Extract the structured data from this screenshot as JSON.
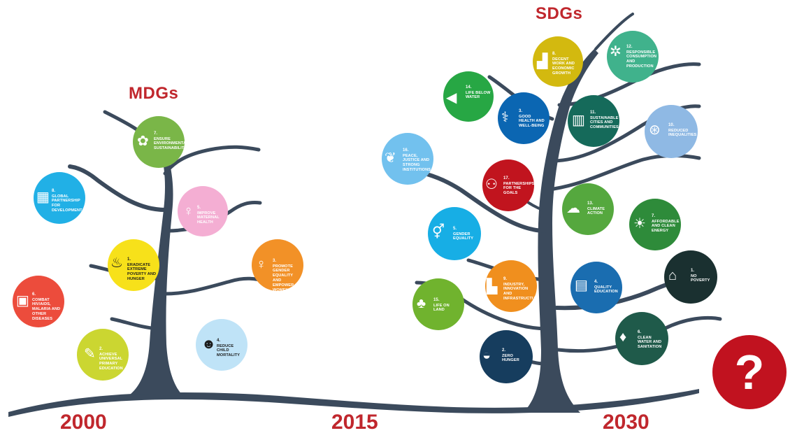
{
  "titles": {
    "mdgs": "MDGs",
    "sdgs": "SDGs"
  },
  "years": [
    "2000",
    "2015",
    "2030"
  ],
  "question_mark": "?",
  "colors": {
    "trunk": "#3b4a5c",
    "accent_red": "#c0272d"
  },
  "mdg_goals": [
    {
      "number": "7.",
      "label": "ENSURE ENVIRONMENTAL SUSTAINABILITY",
      "color": "#7ab648",
      "icon": "plant-icon"
    },
    {
      "number": "8.",
      "label": "GLOBAL PARTNERSHIP FOR DEVELOPMENT",
      "color": "#21b0e6",
      "icon": "handshake-icon"
    },
    {
      "number": "5.",
      "label": "IMPROVE MATERNAL HEALTH",
      "color": "#f4aed3",
      "icon": "pregnant-woman-icon"
    },
    {
      "number": "1.",
      "label": "ERADICATE EXTREME POVERTY AND HUNGER",
      "color": "#f7e11a",
      "icon": "bowl-icon"
    },
    {
      "number": "3.",
      "label": "PROMOTE GENDER EQUALITY AND EMPOWER WOMEN",
      "color": "#f29127",
      "icon": "female-symbol-icon"
    },
    {
      "number": "6.",
      "label": "COMBAT HIV/AIDS, MALARIA AND OTHER DISEASES",
      "color": "#ec4c3c",
      "icon": "medicine-icon"
    },
    {
      "number": "2.",
      "label": "ACHIEVE UNIVERSAL PRIMARY EDUCATION",
      "color": "#cbd631",
      "icon": "pencil-icon"
    },
    {
      "number": "4.",
      "label": "REDUCE CHILD MORTALITY",
      "color": "#bfe3f7",
      "icon": "teddy-bear-icon"
    }
  ],
  "sdg_goals": [
    {
      "number": "8.",
      "label": "DECENT WORK AND ECONOMIC GROWTH",
      "color": "#d3b90f",
      "icon": "growth-chart-icon"
    },
    {
      "number": "12.",
      "label": "RESPONSIBLE CONSUMPTION AND PRODUCTION",
      "color": "#40b28c",
      "icon": "infinity-icon"
    },
    {
      "number": "14.",
      "label": "LIFE BELOW WATER",
      "color": "#27a744",
      "icon": "fish-icon"
    },
    {
      "number": "3.",
      "label": "GOOD HEALTH AND WELL-BEING",
      "color": "#0b66b2",
      "icon": "stethoscope-icon"
    },
    {
      "number": "11.",
      "label": "SUSTAINABLE CITIES AND COMMUNITIES",
      "color": "#156a5a",
      "icon": "city-icon"
    },
    {
      "number": "10.",
      "label": "REDUCED INEQUALITIES",
      "color": "#8fb9e4",
      "icon": "arrows-icon"
    },
    {
      "number": "16.",
      "label": "PEACE, JUSTICE AND STRONG INSTITUTIONS",
      "color": "#72c1ee",
      "icon": "dove-icon"
    },
    {
      "number": "17.",
      "label": "PARTNERSHIPS FOR THE GOALS",
      "color": "#c1141e",
      "icon": "partnership-icon"
    },
    {
      "number": "13.",
      "label": "CLIMATE ACTION",
      "color": "#55a83e",
      "icon": "climate-icon"
    },
    {
      "number": "7.",
      "label": "AFFORDABLE AND CLEAN ENERGY",
      "color": "#2e8b3a",
      "icon": "sun-icon"
    },
    {
      "number": "5.",
      "label": "GENDER EQUALITY",
      "color": "#17aee5",
      "icon": "gender-icon"
    },
    {
      "number": "1.",
      "label": "NO POVERTY",
      "color": "#1a3030",
      "icon": "family-icon"
    },
    {
      "number": "9.",
      "label": "INDUSTRY, INNOVATION AND INFRASTRUCTURE",
      "color": "#f08f1e",
      "icon": "factory-icon"
    },
    {
      "number": "4.",
      "label": "QUALITY EDUCATION",
      "color": "#1a6db0",
      "icon": "book-icon"
    },
    {
      "number": "15.",
      "label": "LIFE ON LAND",
      "color": "#70b32e",
      "icon": "tree-icon"
    },
    {
      "number": "6.",
      "label": "CLEAN WATER AND SANITATION",
      "color": "#1f5a4a",
      "icon": "water-drop-icon"
    },
    {
      "number": "2.",
      "label": "ZERO HUNGER",
      "color": "#163d5e",
      "icon": "bread-icon"
    }
  ]
}
